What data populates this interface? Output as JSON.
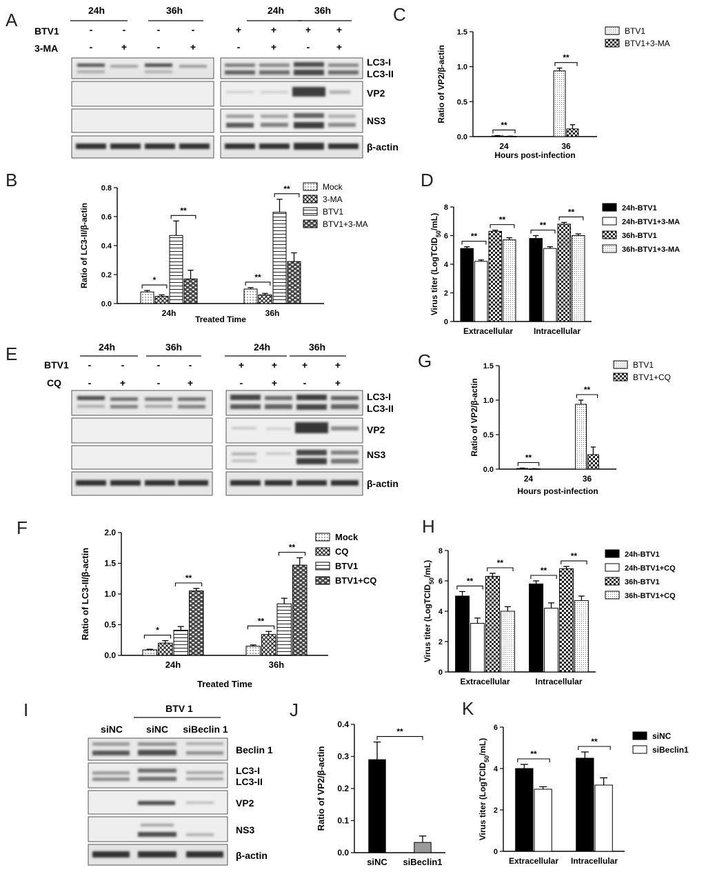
{
  "panels": {
    "A": "A",
    "B": "B",
    "C": "C",
    "D": "D",
    "E": "E",
    "F": "F",
    "G": "G",
    "H": "H",
    "I": "I",
    "J": "J",
    "K": "K"
  },
  "blot_a": {
    "left_times": [
      "24h",
      "36h"
    ],
    "right_times": [
      "24h",
      "36h"
    ],
    "row1_label": "BTV1",
    "row2_label": "3-MA",
    "left_row1": [
      "-",
      "-",
      "-",
      "-"
    ],
    "left_row2": [
      "-",
      "+",
      "-",
      "+"
    ],
    "right_row1": [
      "+",
      "+",
      "+",
      "+"
    ],
    "right_row2": [
      "-",
      "+",
      "-",
      "+"
    ],
    "lc3_i": "LC3-I",
    "lc3_ii": "LC3-II",
    "vp2": "VP2",
    "ns3": "NS3",
    "actin": "β-actin"
  },
  "blot_e": {
    "left_times": [
      "24h",
      "36h"
    ],
    "right_times": [
      "24h",
      "36h"
    ],
    "row1_label": "BTV1",
    "row2_label": "CQ",
    "left_row1": [
      "-",
      "-",
      "-",
      "-"
    ],
    "left_row2": [
      "-",
      "+",
      "-",
      "+"
    ],
    "right_row1": [
      "+",
      "+",
      "+",
      "+"
    ],
    "right_row2": [
      "-",
      "+",
      "-",
      "+"
    ],
    "lc3_i": "LC3-I",
    "lc3_ii": "LC3-II",
    "vp2": "VP2",
    "ns3": "NS3",
    "actin": "β-actin"
  },
  "blot_i": {
    "group_label": "BTV 1",
    "lanes": [
      "siNC",
      "siNC",
      "siBeclin 1"
    ],
    "beclin": "Beclin 1",
    "lc3_i": "LC3-I",
    "lc3_ii": "LC3-II",
    "vp2": "VP2",
    "ns3": "NS3",
    "actin": "β-actin"
  },
  "chart_data": [
    {
      "id": "B",
      "type": "bar",
      "ylabel": "Ratio of LC3-II/β-actin",
      "xlabel": "Treated Time",
      "ylim": [
        0,
        0.8
      ],
      "yticks": [
        "0.0",
        "0.2",
        "0.4",
        "0.6",
        "0.8"
      ],
      "categories": [
        "24h",
        "36h"
      ],
      "series": [
        {
          "name": "Mock",
          "values": [
            0.08,
            0.1
          ],
          "errors": [
            0.01,
            0.01
          ]
        },
        {
          "name": "3-MA",
          "values": [
            0.05,
            0.06
          ],
          "errors": [
            0.01,
            0.01
          ]
        },
        {
          "name": "BTV1",
          "values": [
            0.47,
            0.63
          ],
          "errors": [
            0.1,
            0.09
          ]
        },
        {
          "name": "BTV1+3-MA",
          "values": [
            0.17,
            0.29
          ],
          "errors": [
            0.06,
            0.06
          ]
        }
      ],
      "brackets": [
        {
          "cat": 0,
          "from": 0,
          "to": 1,
          "label": "*"
        },
        {
          "cat": 0,
          "from": 2,
          "to": 3,
          "label": "**"
        },
        {
          "cat": 1,
          "from": 0,
          "to": 1,
          "label": "**"
        },
        {
          "cat": 1,
          "from": 2,
          "to": 3,
          "label": "**"
        }
      ]
    },
    {
      "id": "C",
      "type": "bar",
      "ylabel": "Ratio of VP2/β-actin",
      "xlabel": "Hours post-infection",
      "ylim": [
        0,
        1.5
      ],
      "yticks": [
        "0.0",
        "0.5",
        "1.0",
        "1.5"
      ],
      "categories": [
        "24",
        "36"
      ],
      "series": [
        {
          "name": "BTV1",
          "values": [
            0.01,
            0.94
          ],
          "errors": [
            0.005,
            0.04
          ]
        },
        {
          "name": "BTV1+3-MA",
          "values": [
            0.005,
            0.11
          ],
          "errors": [
            0.002,
            0.06
          ]
        }
      ],
      "brackets": [
        {
          "cat": 0,
          "from": 0,
          "to": 1,
          "label": "**"
        },
        {
          "cat": 1,
          "from": 0,
          "to": 1,
          "label": "**"
        }
      ]
    },
    {
      "id": "D",
      "type": "bar",
      "ylabel": "Virus titer (LogTCID50/mL)",
      "xlabel": "",
      "ylim": [
        0,
        8
      ],
      "yticks": [
        "0",
        "2",
        "4",
        "6",
        "8"
      ],
      "categories": [
        "Extracellular",
        "Intracellular"
      ],
      "series": [
        {
          "name": "24h-BTV1",
          "values": [
            5.1,
            5.8
          ],
          "errors": [
            0.12,
            0.2
          ]
        },
        {
          "name": "24h-BTV1+3-MA",
          "values": [
            4.2,
            5.1
          ],
          "errors": [
            0.1,
            0.12
          ]
        },
        {
          "name": "36h-BTV1",
          "values": [
            6.3,
            6.8
          ],
          "errors": [
            0.08,
            0.12
          ]
        },
        {
          "name": "36h-BTV1+3-MA",
          "values": [
            5.7,
            6.0
          ],
          "errors": [
            0.15,
            0.12
          ]
        }
      ],
      "brackets": [
        {
          "cat": 0,
          "from": 0,
          "to": 1,
          "label": "**"
        },
        {
          "cat": 0,
          "from": 2,
          "to": 3,
          "label": "**"
        },
        {
          "cat": 1,
          "from": 0,
          "to": 1,
          "label": "**"
        },
        {
          "cat": 1,
          "from": 2,
          "to": 3,
          "label": "**"
        }
      ]
    },
    {
      "id": "F",
      "type": "bar",
      "ylabel": "Ratio of LC3-II/β-actin",
      "xlabel": "Treated Time",
      "ylim": [
        0,
        2.0
      ],
      "yticks": [
        "0.0",
        "0.5",
        "1.0",
        "1.5",
        "2.0"
      ],
      "categories": [
        "24h",
        "36h"
      ],
      "series": [
        {
          "name": "Mock",
          "values": [
            0.09,
            0.15
          ],
          "errors": [
            0.01,
            0.02
          ]
        },
        {
          "name": "CQ",
          "values": [
            0.2,
            0.34
          ],
          "errors": [
            0.04,
            0.05
          ]
        },
        {
          "name": "BTV1",
          "values": [
            0.41,
            0.84
          ],
          "errors": [
            0.06,
            0.09
          ]
        },
        {
          "name": "BTV1+CQ",
          "values": [
            1.05,
            1.47
          ],
          "errors": [
            0.04,
            0.12
          ]
        }
      ],
      "brackets": [
        {
          "cat": 0,
          "from": 0,
          "to": 1,
          "label": "*"
        },
        {
          "cat": 0,
          "from": 2,
          "to": 3,
          "label": "**"
        },
        {
          "cat": 1,
          "from": 0,
          "to": 1,
          "label": "**"
        },
        {
          "cat": 1,
          "from": 2,
          "to": 3,
          "label": "**"
        }
      ]
    },
    {
      "id": "G",
      "type": "bar",
      "ylabel": "Ratio of VP2/β-actin",
      "xlabel": "Hours post-infection",
      "ylim": [
        0,
        1.5
      ],
      "yticks": [
        "0.0",
        "0.5",
        "1.0",
        "1.5"
      ],
      "categories": [
        "24",
        "36"
      ],
      "series": [
        {
          "name": "BTV1",
          "values": [
            0.01,
            0.94
          ],
          "errors": [
            0.005,
            0.06
          ]
        },
        {
          "name": "BTV1+CQ",
          "values": [
            0.005,
            0.21
          ],
          "errors": [
            0.002,
            0.11
          ]
        }
      ],
      "brackets": [
        {
          "cat": 0,
          "from": 0,
          "to": 1,
          "label": "**"
        },
        {
          "cat": 1,
          "from": 0,
          "to": 1,
          "label": "**"
        }
      ]
    },
    {
      "id": "H",
      "type": "bar",
      "ylabel": "Virus titer (LogTCID50/mL)",
      "xlabel": "",
      "ylim": [
        0,
        8
      ],
      "yticks": [
        "0",
        "2",
        "4",
        "6",
        "8"
      ],
      "categories": [
        "Extracellular",
        "Intracellular"
      ],
      "series": [
        {
          "name": "24h-BTV1",
          "values": [
            5.0,
            5.8
          ],
          "errors": [
            0.3,
            0.2
          ]
        },
        {
          "name": "24h-BTV1+CQ",
          "values": [
            3.2,
            4.2
          ],
          "errors": [
            0.35,
            0.35
          ]
        },
        {
          "name": "36h-BTV1",
          "values": [
            6.3,
            6.8
          ],
          "errors": [
            0.2,
            0.15
          ]
        },
        {
          "name": "36h-BTV1+CQ",
          "values": [
            4.0,
            4.7
          ],
          "errors": [
            0.3,
            0.3
          ]
        }
      ],
      "brackets": [
        {
          "cat": 0,
          "from": 0,
          "to": 1,
          "label": "**"
        },
        {
          "cat": 0,
          "from": 2,
          "to": 3,
          "label": "**"
        },
        {
          "cat": 1,
          "from": 0,
          "to": 1,
          "label": "**"
        },
        {
          "cat": 1,
          "from": 2,
          "to": 3,
          "label": "**"
        }
      ]
    },
    {
      "id": "J",
      "type": "bar",
      "ylabel": "Ratio of VP2/β-actin",
      "xlabel": "",
      "ylim": [
        0,
        0.4
      ],
      "yticks": [
        "0.0",
        "0.1",
        "0.2",
        "0.3",
        "0.4"
      ],
      "categories": [
        "siNC",
        "siBeclin1"
      ],
      "series": [
        {
          "name": "",
          "values": [
            0.29,
            0.032
          ],
          "errors": [
            0.055,
            0.02
          ]
        }
      ],
      "brackets": [
        {
          "between": [
            0,
            1
          ],
          "label": "**"
        }
      ]
    },
    {
      "id": "K",
      "type": "bar",
      "ylabel": "Virus titer (LogTCID50/mL)",
      "xlabel": "",
      "ylim": [
        0,
        6
      ],
      "yticks": [
        "0",
        "2",
        "4",
        "6"
      ],
      "categories": [
        "Extracellular",
        "Intracellular"
      ],
      "series": [
        {
          "name": "siNC",
          "values": [
            4.0,
            4.5
          ],
          "errors": [
            0.2,
            0.3
          ]
        },
        {
          "name": "siBeclin1",
          "values": [
            3.0,
            3.2
          ],
          "errors": [
            0.12,
            0.35
          ]
        }
      ],
      "brackets": [
        {
          "cat": 0,
          "from": 0,
          "to": 1,
          "label": "**"
        },
        {
          "cat": 1,
          "from": 0,
          "to": 1,
          "label": "**"
        }
      ]
    }
  ]
}
